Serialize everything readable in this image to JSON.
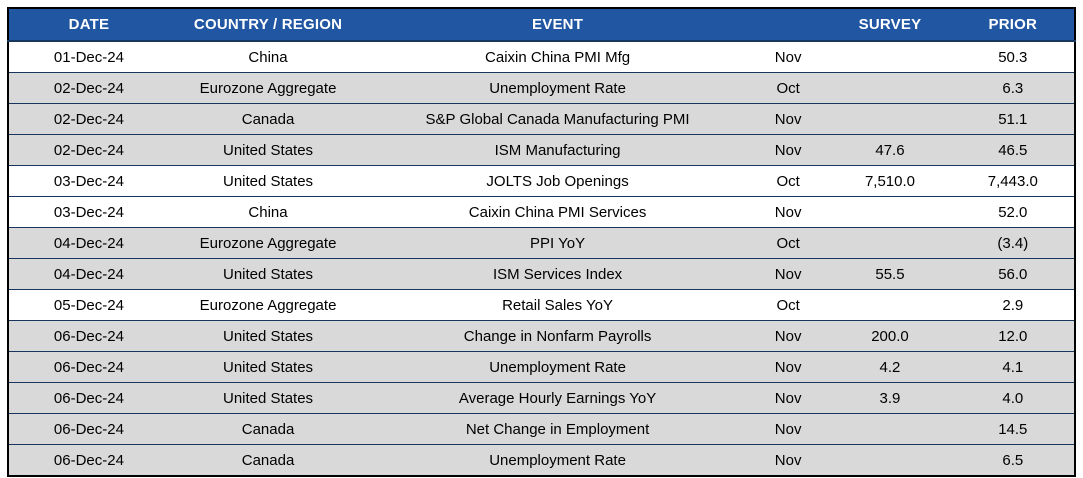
{
  "colors": {
    "header_bg": "#2156A3",
    "header_text": "#FFFFFF",
    "row_plain": "#FFFFFF",
    "row_shaded": "#D9D9D9",
    "grid_line": "#17375E",
    "outer_border": "#000000",
    "text": "#000000"
  },
  "table": {
    "columns": [
      {
        "key": "date",
        "label": "DATE"
      },
      {
        "key": "region",
        "label": "COUNTRY / REGION"
      },
      {
        "key": "event",
        "label": "EVENT"
      },
      {
        "key": "month",
        "label": ""
      },
      {
        "key": "survey",
        "label": "SURVEY"
      },
      {
        "key": "prior",
        "label": "PRIOR"
      }
    ],
    "rows": [
      {
        "date": "01-Dec-24",
        "region": "China",
        "event": "Caixin China PMI Mfg",
        "month": "Nov",
        "survey": "",
        "prior": "50.3"
      },
      {
        "date": "02-Dec-24",
        "region": "Eurozone Aggregate",
        "event": "Unemployment Rate",
        "month": "Oct",
        "survey": "",
        "prior": "6.3"
      },
      {
        "date": "02-Dec-24",
        "region": "Canada",
        "event": "S&P Global Canada Manufacturing PMI",
        "month": "Nov",
        "survey": "",
        "prior": "51.1"
      },
      {
        "date": "02-Dec-24",
        "region": "United States",
        "event": "ISM Manufacturing",
        "month": "Nov",
        "survey": "47.6",
        "prior": "46.5"
      },
      {
        "date": "03-Dec-24",
        "region": "United States",
        "event": "JOLTS Job Openings",
        "month": "Oct",
        "survey": "7,510.0",
        "prior": "7,443.0"
      },
      {
        "date": "03-Dec-24",
        "region": "China",
        "event": "Caixin China PMI Services",
        "month": "Nov",
        "survey": "",
        "prior": "52.0"
      },
      {
        "date": "04-Dec-24",
        "region": "Eurozone Aggregate",
        "event": "PPI YoY",
        "month": "Oct",
        "survey": "",
        "prior": "(3.4)"
      },
      {
        "date": "04-Dec-24",
        "region": "United States",
        "event": "ISM Services Index",
        "month": "Nov",
        "survey": "55.5",
        "prior": "56.0"
      },
      {
        "date": "05-Dec-24",
        "region": "Eurozone Aggregate",
        "event": "Retail Sales YoY",
        "month": "Oct",
        "survey": "",
        "prior": "2.9"
      },
      {
        "date": "06-Dec-24",
        "region": "United States",
        "event": "Change in Nonfarm Payrolls",
        "month": "Nov",
        "survey": "200.0",
        "prior": "12.0"
      },
      {
        "date": "06-Dec-24",
        "region": "United States",
        "event": "Unemployment Rate",
        "month": "Nov",
        "survey": "4.2",
        "prior": "4.1"
      },
      {
        "date": "06-Dec-24",
        "region": "United States",
        "event": "Average Hourly Earnings YoY",
        "month": "Nov",
        "survey": "3.9",
        "prior": "4.0"
      },
      {
        "date": "06-Dec-24",
        "region": "Canada",
        "event": "Net Change in Employment",
        "month": "Nov",
        "survey": "",
        "prior": "14.5"
      },
      {
        "date": "06-Dec-24",
        "region": "Canada",
        "event": "Unemployment Rate",
        "month": "Nov",
        "survey": "",
        "prior": "6.5"
      }
    ]
  }
}
